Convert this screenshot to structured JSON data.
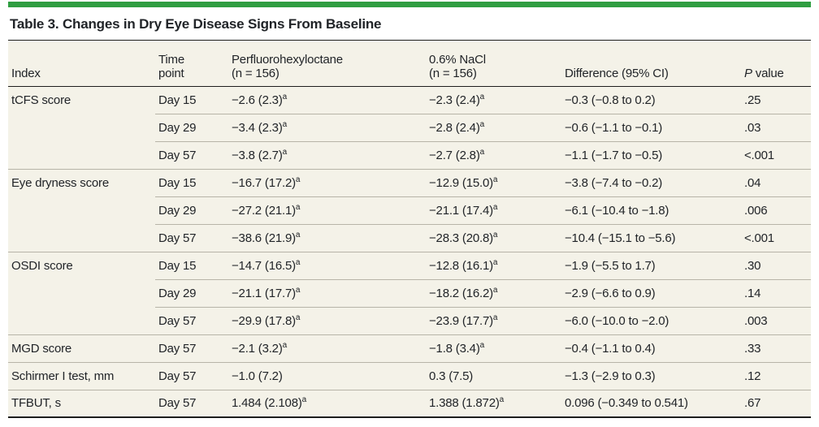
{
  "title": "Table 3. Changes in Dry Eye Disease Signs From Baseline",
  "accent_color": "#2f9e41",
  "headers": {
    "index": "Index",
    "time": "Time\npoint",
    "pfho": "Perfluorohexyloctane\n(n = 156)",
    "nacl": "0.6% NaCl\n(n = 156)",
    "difference": "Difference (95% CI)",
    "p_italic": "P",
    "p_rest": " value"
  },
  "rows": [
    {
      "index": "tCFS score",
      "time": "Day 15",
      "pfho": "−2.6 (2.3)",
      "pfho_sup": "a",
      "nacl": "−2.3 (2.4)",
      "nacl_sup": "a",
      "diff": "−0.3 (−0.8 to 0.2)",
      "p": ".25"
    },
    {
      "index": "",
      "time": "Day 29",
      "pfho": "−3.4 (2.3)",
      "pfho_sup": "a",
      "nacl": "−2.8 (2.4)",
      "nacl_sup": "a",
      "diff": "−0.6 (−1.1 to −0.1)",
      "p": ".03"
    },
    {
      "index": "",
      "time": "Day 57",
      "pfho": "−3.8 (2.7)",
      "pfho_sup": "a",
      "nacl": "−2.7 (2.8)",
      "nacl_sup": "a",
      "diff": "−1.1 (−1.7 to −0.5)",
      "p": "<.001"
    },
    {
      "index": "Eye dryness score",
      "time": "Day 15",
      "pfho": "−16.7 (17.2)",
      "pfho_sup": "a",
      "nacl": "−12.9 (15.0)",
      "nacl_sup": "a",
      "diff": "−3.8 (−7.4 to −0.2)",
      "p": ".04"
    },
    {
      "index": "",
      "time": "Day 29",
      "pfho": "−27.2 (21.1)",
      "pfho_sup": "a",
      "nacl": "−21.1 (17.4)",
      "nacl_sup": "a",
      "diff": "−6.1 (−10.4 to −1.8)",
      "p": ".006"
    },
    {
      "index": "",
      "time": "Day 57",
      "pfho": "−38.6 (21.9)",
      "pfho_sup": "a",
      "nacl": "−28.3 (20.8)",
      "nacl_sup": "a",
      "diff": "−10.4 (−15.1 to −5.6)",
      "p": "<.001"
    },
    {
      "index": "OSDI score",
      "time": "Day 15",
      "pfho": "−14.7 (16.5)",
      "pfho_sup": "a",
      "nacl": "−12.8 (16.1)",
      "nacl_sup": "a",
      "diff": "−1.9 (−5.5 to 1.7)",
      "p": ".30"
    },
    {
      "index": "",
      "time": "Day 29",
      "pfho": "−21.1 (17.7)",
      "pfho_sup": "a",
      "nacl": "−18.2 (16.2)",
      "nacl_sup": "a",
      "diff": "−2.9 (−6.6 to 0.9)",
      "p": ".14"
    },
    {
      "index": "",
      "time": "Day 57",
      "pfho": "−29.9 (17.8)",
      "pfho_sup": "a",
      "nacl": "−23.9 (17.7)",
      "nacl_sup": "a",
      "diff": "−6.0 (−10.0 to −2.0)",
      "p": ".003"
    },
    {
      "index": "MGD score",
      "time": "Day 57",
      "pfho": "−2.1 (3.2)",
      "pfho_sup": "a",
      "nacl": "−1.8 (3.4)",
      "nacl_sup": "a",
      "diff": "−0.4 (−1.1 to 0.4)",
      "p": ".33"
    },
    {
      "index": "Schirmer I test, mm",
      "time": "Day 57",
      "pfho": "−1.0 (7.2)",
      "nacl": "0.3 (7.5)",
      "diff": "−1.3 (−2.9 to 0.3)",
      "p": ".12"
    },
    {
      "index": "TFBUT, s",
      "time": "Day 57",
      "pfho": "1.484 (2.108)",
      "pfho_sup": "a",
      "nacl": "1.388 (1.872)",
      "nacl_sup": "a",
      "diff": "0.096 (−0.349 to 0.541)",
      "p": ".67"
    }
  ]
}
